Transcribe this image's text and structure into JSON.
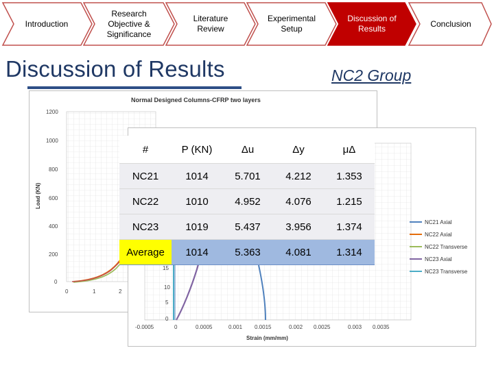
{
  "nav": {
    "items": [
      {
        "label": "Introduction",
        "active": false
      },
      {
        "label": "Research Objective & Significance",
        "active": false
      },
      {
        "label": "Literature Review",
        "active": false
      },
      {
        "label": "Experimental Setup",
        "active": false
      },
      {
        "label": "Discussion of Results",
        "active": true
      },
      {
        "label": "Conclusion",
        "active": false
      }
    ],
    "colors": {
      "inactive_fill": "#ffffff",
      "inactive_border": "#c0504d",
      "active_fill": "#c00000"
    }
  },
  "page": {
    "title": "Discussion of Results",
    "group_label": "NC2 Group"
  },
  "back_chart": {
    "title": "Normal Designed Columns-CFRP two layers",
    "ylabel": "Load (KN)",
    "y_ticks": [
      "1200",
      "1000",
      "800",
      "600",
      "400",
      "200",
      "0"
    ],
    "x_ticks": [
      "0",
      "1",
      "2"
    ]
  },
  "front_chart": {
    "y_ticks": [
      "15",
      "10",
      "5",
      "0"
    ],
    "x_ticks": [
      "-0.0005",
      "0",
      "0.0005",
      "0.001",
      "0.0015",
      "0.002",
      "0.0025",
      "0.003",
      "0.0035"
    ],
    "xlabel": "Strain (mm/mm)",
    "legend": [
      {
        "label": "NC21 Axial",
        "color": "#4f81bd"
      },
      {
        "label": "NC22 Axial",
        "color": "#e46c0a"
      },
      {
        "label": "NC22 Transverse",
        "color": "#9bbb59"
      },
      {
        "label": "NC23 Axial",
        "color": "#8064a2"
      },
      {
        "label": "NC23 Transverse",
        "color": "#4bacc6"
      }
    ]
  },
  "table": {
    "headers": [
      "#",
      "P (KN)",
      "Δu",
      "Δy",
      "μΔ"
    ],
    "rows": [
      [
        "NC21",
        "1014",
        "5.701",
        "4.212",
        "1.353"
      ],
      [
        "NC22",
        "1010",
        "4.952",
        "4.076",
        "1.215"
      ],
      [
        "NC23",
        "1019",
        "5.437",
        "3.956",
        "1.374"
      ]
    ],
    "average": [
      "Average",
      "1014",
      "5.363",
      "4.081",
      "1.314"
    ]
  }
}
